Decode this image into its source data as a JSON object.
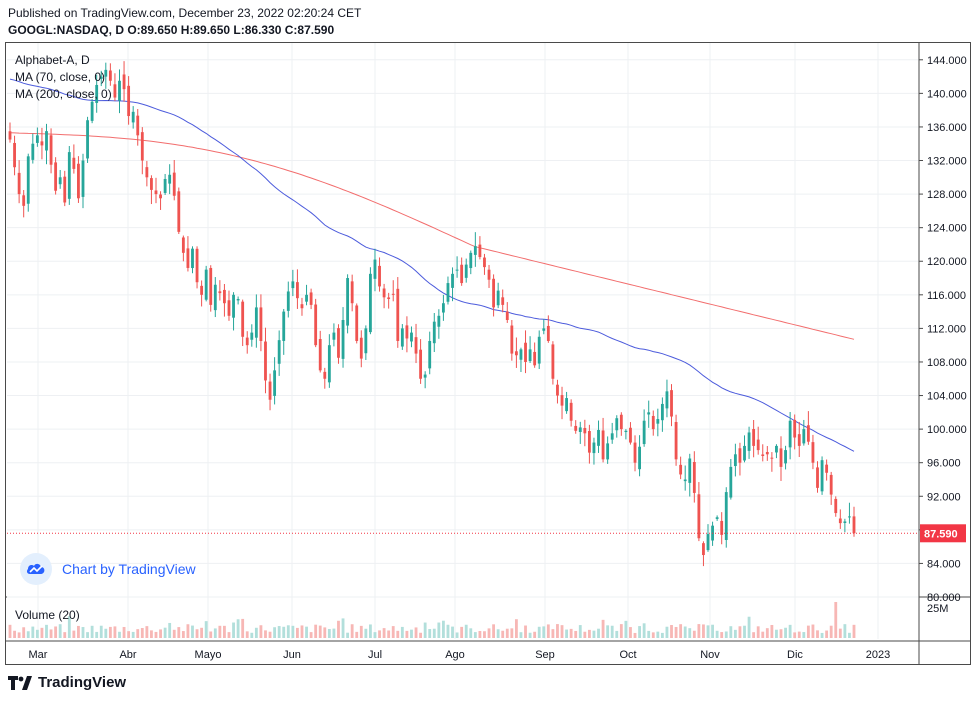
{
  "header": {
    "published": "Published on TradingView.com, December 23, 2022 02:20:24 CET",
    "ohlc": "GOOGL:NASDAQ, D  O:89.650 H:89.650 L:86.330 C:87.590"
  },
  "legend": {
    "symbol": "Alphabet-A, D",
    "ma70": "MA (70, close, 0)",
    "ma200": "MA (200, close, 0)",
    "volume": "Volume (20)"
  },
  "watermark": {
    "text": "Chart by TradingView",
    "icon": "tradingview-cloud-icon"
  },
  "footer": {
    "brand": "TradingView",
    "icon": "tradingview-logo-icon"
  },
  "price_label": {
    "value": "87.590",
    "color": "#f23645"
  },
  "colors": {
    "up": "#26a69a",
    "down": "#ef5350",
    "ma70": "#4c5bdc",
    "ma200": "#f26d6d",
    "grid": "#eef0f3"
  },
  "chart_data": {
    "type": "candlestick",
    "symbol": "GOOGL",
    "y_ticks": [
      "80.000",
      "84.000",
      "88.000",
      "92.000",
      "96.000",
      "100.000",
      "104.000",
      "108.000",
      "112.000",
      "116.000",
      "120.000",
      "124.000",
      "128.000",
      "132.000",
      "136.000",
      "140.000",
      "144.000"
    ],
    "ylim": [
      80,
      146
    ],
    "x_ticks": [
      "Mar",
      "Abr",
      "Mayo",
      "Jun",
      "Jul",
      "Ago",
      "Sep",
      "Oct",
      "Nov",
      "Dic",
      "2023"
    ],
    "volume_tick": "25M",
    "last_close": 87.59,
    "closes": [
      134.5,
      131.2,
      128.0,
      126.6,
      132.5,
      134.0,
      135.0,
      133.8,
      135.5,
      131.5,
      128.4,
      130.0,
      127.0,
      133.0,
      131.0,
      127.5,
      132.0,
      136.8,
      139.0,
      141.0,
      142.0,
      142.8,
      141.5,
      139.5,
      141.5,
      140.5,
      137.3,
      137.8,
      135.0,
      132.0,
      130.0,
      128.5,
      128.0,
      127.5,
      129.8,
      130.3,
      127.8,
      123.5,
      121.0,
      119.2,
      121.5,
      117.5,
      116.0,
      119.0,
      114.8,
      117.2,
      116.2,
      115.0,
      113.5,
      116.0,
      115.5,
      111.0,
      110.0,
      111.5,
      114.5,
      110.5,
      105.8,
      103.5,
      107.0,
      110.6,
      114.0,
      116.4,
      117.6,
      115.6,
      114.4,
      116.0,
      114.8,
      110.0,
      107.0,
      106.0,
      110.0,
      111.5,
      108.5,
      113.0,
      118.0,
      115.0,
      110.5,
      108.4,
      112.0,
      118.5,
      120.2,
      117.0,
      115.7,
      115.5,
      116.0,
      110.5,
      112.0,
      110.8,
      111.5,
      109.0,
      106.0,
      106.5,
      110.5,
      112.8,
      113.5,
      115.0,
      117.4,
      118.5,
      119.0,
      117.4,
      119.6,
      121.0,
      121.8,
      120.5,
      119.3,
      117.8,
      114.5,
      116.5,
      114.8,
      113.0,
      109.0,
      108.8,
      109.5,
      108.0,
      109.5,
      107.6,
      111.0,
      112.0,
      110.5,
      106.0,
      104.0,
      102.8,
      103.7,
      101.0,
      99.8,
      100.2,
      99.5,
      97.2,
      98.4,
      99.9,
      96.4,
      98.3,
      99.5,
      101.3,
      100.0,
      99.8,
      98.4,
      96.0,
      97.9,
      101.0,
      102.0,
      100.0,
      101.2,
      103.0,
      104.5,
      101.5,
      96.4,
      94.6,
      94.0,
      96.5,
      92.4,
      87.0,
      85.0,
      87.5,
      88.5,
      89.5,
      87.4,
      92.5,
      95.5,
      97.0,
      96.0,
      98.0,
      99.6,
      98.0,
      97.5,
      96.8,
      97.0,
      96.5,
      98.0,
      95.5,
      97.5,
      101.0,
      99.0,
      98.0,
      100.0,
      98.5,
      96.0,
      93.0,
      96.3,
      94.8,
      92.2,
      90.0,
      88.8,
      89.0,
      89.6,
      87.6
    ],
    "ma70_start": 141.7,
    "ma70_end": 96.6,
    "ma200_start": 135.3,
    "ma200_end": 110.7,
    "volume_max_label": "25M"
  }
}
